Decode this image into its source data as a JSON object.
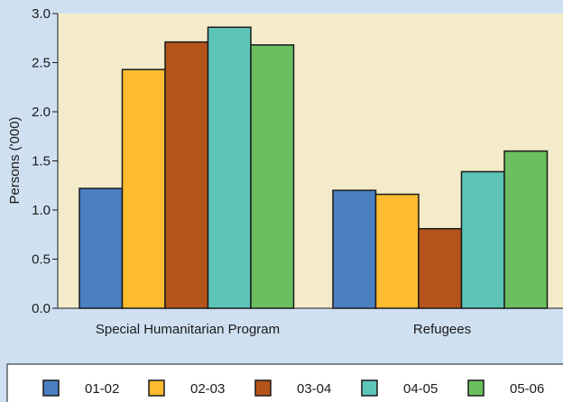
{
  "chart_data": {
    "type": "bar",
    "categories": [
      "Special Humanitarian Program",
      "Refugees"
    ],
    "series": [
      {
        "name": "01-02",
        "color": "#4a7fc1",
        "values": [
          1.22,
          1.2
        ]
      },
      {
        "name": "02-03",
        "color": "#fdbb30",
        "values": [
          2.43,
          1.16
        ]
      },
      {
        "name": "03-04",
        "color": "#b5541a",
        "values": [
          2.71,
          0.81
        ]
      },
      {
        "name": "04-05",
        "color": "#5cc5b8",
        "values": [
          2.86,
          1.39
        ]
      },
      {
        "name": "05-06",
        "color": "#6cbf5f",
        "values": [
          2.68,
          1.6
        ]
      }
    ],
    "ylabel": "Persons ('000)",
    "yticks": [
      "0.0",
      "0.5",
      "1.0",
      "1.5",
      "2.0",
      "2.5",
      "3.0"
    ],
    "ylim": [
      0,
      3.0
    ],
    "grid": false,
    "legend_position": "bottom",
    "colors": {
      "page_background": "#cfe0f1",
      "plot_background": "#f3ebc9",
      "legend_background": "#ffffff",
      "axis": "#1a1a1a"
    }
  }
}
